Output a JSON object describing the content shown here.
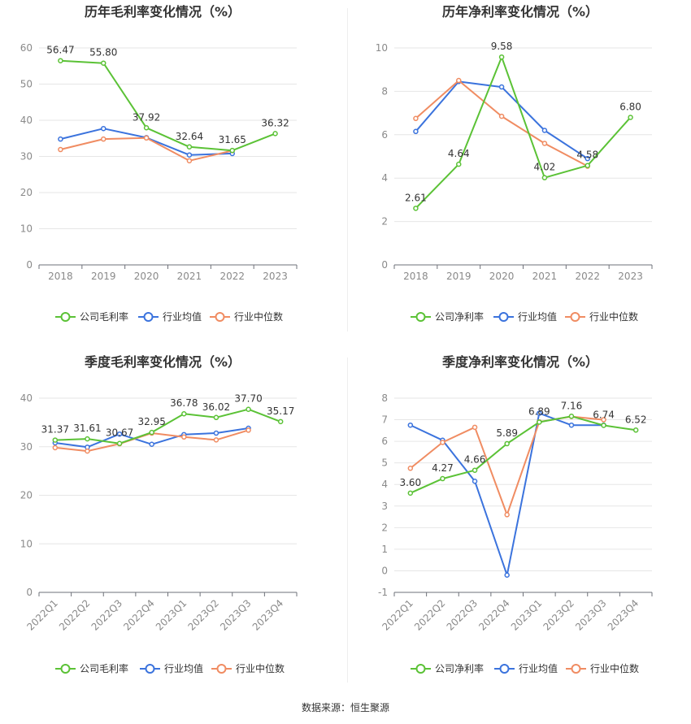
{
  "colors": {
    "company": "#5bc236",
    "industry_avg": "#3b73dd",
    "industry_median": "#f08c62"
  },
  "source_text": "数据来源：恒生聚源",
  "chart_data": [
    {
      "type": "line",
      "title": "历年毛利率变化情况（%）",
      "categories": [
        "2018",
        "2019",
        "2020",
        "2021",
        "2022",
        "2023"
      ],
      "ylim": [
        0,
        60
      ],
      "yticks": [
        0,
        10,
        20,
        30,
        40,
        50,
        60
      ],
      "grid": true,
      "rotate_x": false,
      "legend_position": "bottom",
      "series": [
        {
          "name": "公司毛利率",
          "role": "company",
          "values": [
            56.47,
            55.8,
            37.92,
            32.64,
            31.65,
            36.32
          ],
          "labels": [
            "56.47",
            "55.80",
            "37.92",
            "32.64",
            "31.65",
            "36.32"
          ]
        },
        {
          "name": "行业均值",
          "role": "industry_avg",
          "values": [
            34.8,
            37.7,
            35.2,
            30.4,
            30.8,
            null
          ]
        },
        {
          "name": "行业中位数",
          "role": "industry_median",
          "values": [
            31.9,
            34.8,
            35.1,
            28.8,
            31.6,
            null
          ]
        }
      ]
    },
    {
      "type": "line",
      "title": "历年净利率变化情况（%）",
      "categories": [
        "2018",
        "2019",
        "2020",
        "2021",
        "2022",
        "2023"
      ],
      "ylim": [
        0,
        10
      ],
      "yticks": [
        0,
        2,
        4,
        6,
        8,
        10
      ],
      "grid": true,
      "rotate_x": false,
      "legend_position": "bottom",
      "series": [
        {
          "name": "公司净利率",
          "role": "company",
          "values": [
            2.61,
            4.64,
            9.58,
            4.02,
            4.58,
            6.8
          ],
          "labels": [
            "2.61",
            "4.64",
            "9.58",
            "4.02",
            "4.58",
            "6.80"
          ]
        },
        {
          "name": "行业均值",
          "role": "industry_avg",
          "values": [
            6.15,
            8.45,
            8.2,
            6.2,
            4.9,
            null
          ]
        },
        {
          "name": "行业中位数",
          "role": "industry_median",
          "values": [
            6.75,
            8.5,
            6.85,
            5.6,
            4.55,
            null
          ]
        }
      ]
    },
    {
      "type": "line",
      "title": "季度毛利率变化情况（%）",
      "categories": [
        "2022Q1",
        "2022Q2",
        "2022Q3",
        "2022Q4",
        "2023Q1",
        "2023Q2",
        "2023Q3",
        "2023Q4"
      ],
      "ylim": [
        0,
        40
      ],
      "yticks": [
        0,
        10,
        20,
        30,
        40
      ],
      "grid": true,
      "rotate_x": true,
      "legend_position": "bottom",
      "series": [
        {
          "name": "公司毛利率",
          "role": "company",
          "values": [
            31.37,
            31.61,
            30.67,
            32.95,
            36.78,
            36.02,
            37.7,
            35.17
          ],
          "labels": [
            "31.37",
            "31.61",
            "30.67",
            "32.95",
            "36.78",
            "36.02",
            "37.70",
            "35.17"
          ]
        },
        {
          "name": "行业均值",
          "role": "industry_avg",
          "values": [
            30.8,
            29.9,
            32.6,
            30.5,
            32.5,
            32.8,
            33.8,
            null
          ]
        },
        {
          "name": "行业中位数",
          "role": "industry_median",
          "values": [
            29.8,
            29.1,
            30.6,
            32.8,
            32.0,
            31.4,
            33.4,
            null
          ]
        }
      ]
    },
    {
      "type": "line",
      "title": "季度净利率变化情况（%）",
      "categories": [
        "2022Q1",
        "2022Q2",
        "2022Q3",
        "2022Q4",
        "2023Q1",
        "2023Q2",
        "2023Q3",
        "2023Q4"
      ],
      "ylim": [
        -1,
        8
      ],
      "yticks": [
        -1,
        0,
        1,
        2,
        3,
        4,
        5,
        6,
        7,
        8
      ],
      "grid": true,
      "rotate_x": true,
      "legend_position": "bottom",
      "series": [
        {
          "name": "公司净利率",
          "role": "company",
          "values": [
            3.6,
            4.27,
            4.66,
            5.89,
            6.89,
            7.16,
            6.74,
            6.52
          ],
          "labels": [
            "3.60",
            "4.27",
            "4.66",
            "5.89",
            "6.89",
            "7.16",
            "6.74",
            "6.52"
          ]
        },
        {
          "name": "行业均值",
          "role": "industry_avg",
          "values": [
            6.75,
            6.05,
            4.15,
            -0.2,
            7.3,
            6.75,
            6.75,
            null
          ]
        },
        {
          "name": "行业中位数",
          "role": "industry_median",
          "values": [
            4.75,
            5.95,
            6.65,
            2.6,
            6.9,
            7.15,
            7.0,
            null
          ]
        }
      ]
    }
  ]
}
